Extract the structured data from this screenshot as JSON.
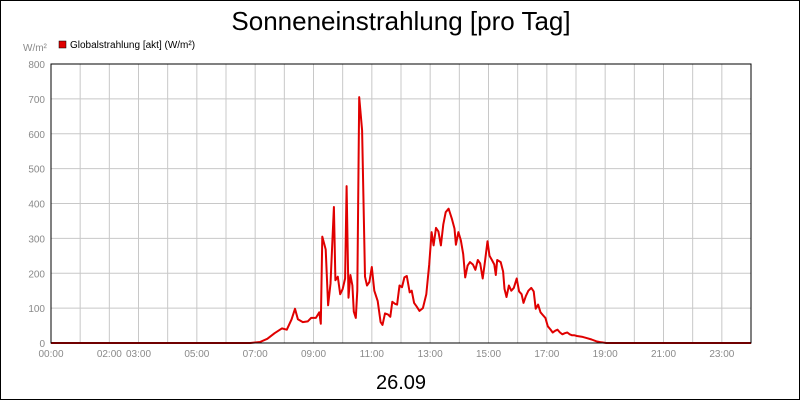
{
  "colors": {
    "series": "#e00000",
    "grid": "#c8c8c8",
    "ticks": "#8a8a8a"
  },
  "chart_data": {
    "type": "line",
    "title": "Sonneneinstrahlung [pro Tag]",
    "date_label": "26.09",
    "y_unit_label": "W/m²",
    "ylim": [
      0,
      800
    ],
    "y_ticks": [
      0,
      100,
      200,
      300,
      400,
      500,
      600,
      700,
      800
    ],
    "xlim": [
      "00:00",
      "24:00"
    ],
    "x_tick_labels": [
      "00:00",
      "02:00",
      "03:00",
      "05:00",
      "07:00",
      "09:00",
      "11:00",
      "13:00",
      "15:00",
      "17:00",
      "19:00",
      "21:00",
      "23:00"
    ],
    "grid": true,
    "legend_position": "top-left",
    "series": [
      {
        "name": "Globalstrahlung [akt] (W/m²)",
        "color": "#e00000",
        "points": [
          [
            "00:00",
            0
          ],
          [
            "06:50",
            0
          ],
          [
            "07:10",
            3
          ],
          [
            "07:25",
            12
          ],
          [
            "07:40",
            28
          ],
          [
            "07:55",
            42
          ],
          [
            "08:05",
            38
          ],
          [
            "08:15",
            68
          ],
          [
            "08:22",
            98
          ],
          [
            "08:28",
            68
          ],
          [
            "08:38",
            60
          ],
          [
            "08:48",
            62
          ],
          [
            "08:55",
            72
          ],
          [
            "09:05",
            72
          ],
          [
            "09:12",
            88
          ],
          [
            "09:15",
            55
          ],
          [
            "09:18",
            305
          ],
          [
            "09:25",
            268
          ],
          [
            "09:30",
            108
          ],
          [
            "09:35",
            170
          ],
          [
            "09:42",
            390
          ],
          [
            "09:45",
            180
          ],
          [
            "09:50",
            190
          ],
          [
            "09:55",
            140
          ],
          [
            "10:00",
            155
          ],
          [
            "10:05",
            185
          ],
          [
            "10:08",
            450
          ],
          [
            "10:12",
            130
          ],
          [
            "10:16",
            195
          ],
          [
            "10:20",
            165
          ],
          [
            "10:23",
            90
          ],
          [
            "10:27",
            72
          ],
          [
            "10:30",
            150
          ],
          [
            "10:34",
            705
          ],
          [
            "10:40",
            610
          ],
          [
            "10:46",
            190
          ],
          [
            "10:50",
            165
          ],
          [
            "10:55",
            175
          ],
          [
            "11:00",
            218
          ],
          [
            "11:05",
            150
          ],
          [
            "11:12",
            120
          ],
          [
            "11:18",
            60
          ],
          [
            "11:22",
            52
          ],
          [
            "11:27",
            85
          ],
          [
            "11:33",
            82
          ],
          [
            "11:38",
            75
          ],
          [
            "11:42",
            118
          ],
          [
            "11:48",
            112
          ],
          [
            "11:52",
            110
          ],
          [
            "11:57",
            165
          ],
          [
            "12:02",
            160
          ],
          [
            "12:07",
            188
          ],
          [
            "12:12",
            192
          ],
          [
            "12:18",
            145
          ],
          [
            "12:22",
            150
          ],
          [
            "12:27",
            115
          ],
          [
            "12:32",
            105
          ],
          [
            "12:38",
            92
          ],
          [
            "12:45",
            100
          ],
          [
            "12:52",
            140
          ],
          [
            "12:58",
            225
          ],
          [
            "13:03",
            318
          ],
          [
            "13:07",
            280
          ],
          [
            "13:12",
            330
          ],
          [
            "13:17",
            320
          ],
          [
            "13:22",
            280
          ],
          [
            "13:27",
            340
          ],
          [
            "13:32",
            375
          ],
          [
            "13:38",
            385
          ],
          [
            "13:45",
            355
          ],
          [
            "13:50",
            328
          ],
          [
            "13:53",
            282
          ],
          [
            "13:58",
            318
          ],
          [
            "14:03",
            295
          ],
          [
            "14:08",
            255
          ],
          [
            "14:12",
            188
          ],
          [
            "14:17",
            222
          ],
          [
            "14:22",
            232
          ],
          [
            "14:28",
            225
          ],
          [
            "14:33",
            210
          ],
          [
            "14:38",
            238
          ],
          [
            "14:43",
            228
          ],
          [
            "14:48",
            185
          ],
          [
            "14:52",
            225
          ],
          [
            "14:58",
            292
          ],
          [
            "15:02",
            250
          ],
          [
            "15:07",
            238
          ],
          [
            "15:12",
            225
          ],
          [
            "15:15",
            195
          ],
          [
            "15:18",
            238
          ],
          [
            "15:25",
            232
          ],
          [
            "15:30",
            205
          ],
          [
            "15:33",
            155
          ],
          [
            "15:37",
            132
          ],
          [
            "15:42",
            165
          ],
          [
            "15:47",
            150
          ],
          [
            "15:52",
            158
          ],
          [
            "15:58",
            185
          ],
          [
            "16:03",
            148
          ],
          [
            "16:08",
            140
          ],
          [
            "16:12",
            115
          ],
          [
            "16:17",
            135
          ],
          [
            "16:22",
            150
          ],
          [
            "16:28",
            158
          ],
          [
            "16:33",
            148
          ],
          [
            "16:37",
            98
          ],
          [
            "16:42",
            110
          ],
          [
            "16:47",
            88
          ],
          [
            "16:52",
            80
          ],
          [
            "16:57",
            72
          ],
          [
            "17:02",
            48
          ],
          [
            "17:07",
            40
          ],
          [
            "17:12",
            30
          ],
          [
            "17:17",
            35
          ],
          [
            "17:22",
            38
          ],
          [
            "17:27",
            30
          ],
          [
            "17:32",
            25
          ],
          [
            "17:37",
            28
          ],
          [
            "17:42",
            30
          ],
          [
            "17:47",
            25
          ],
          [
            "17:52",
            22
          ],
          [
            "17:57",
            22
          ],
          [
            "18:02",
            20
          ],
          [
            "18:12",
            18
          ],
          [
            "18:22",
            14
          ],
          [
            "18:32",
            10
          ],
          [
            "18:42",
            5
          ],
          [
            "18:52",
            2
          ],
          [
            "19:02",
            0
          ],
          [
            "24:00",
            0
          ]
        ]
      }
    ]
  }
}
